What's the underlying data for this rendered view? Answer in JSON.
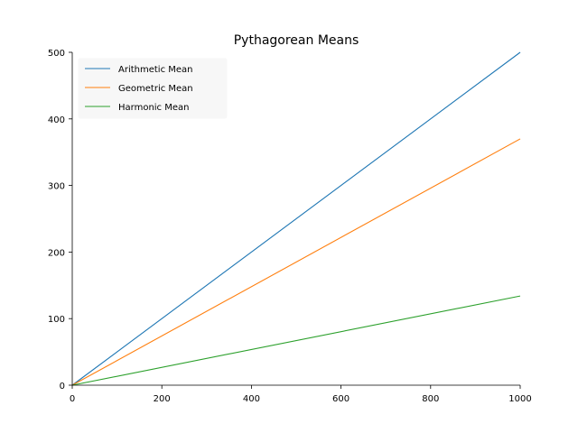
{
  "chart_data": {
    "type": "line",
    "title": "Pythagorean Means",
    "xlabel": "",
    "ylabel": "",
    "xlim": [
      0,
      1000
    ],
    "ylim": [
      0,
      500
    ],
    "xticks": [
      0,
      200,
      400,
      600,
      800,
      1000
    ],
    "yticks": [
      0,
      100,
      200,
      300,
      400,
      500
    ],
    "grid": false,
    "legend_position": "top-left",
    "series": [
      {
        "name": "Arithmetic Mean",
        "color": "#1f77b4",
        "x": [
          0,
          1000
        ],
        "y": [
          0,
          500
        ]
      },
      {
        "name": "Geometric Mean",
        "color": "#ff7f0e",
        "x": [
          0,
          1000
        ],
        "y": [
          0,
          370
        ]
      },
      {
        "name": "Harmonic Mean",
        "color": "#2ca02c",
        "x": [
          0,
          1000
        ],
        "y": [
          0,
          134
        ]
      }
    ]
  }
}
